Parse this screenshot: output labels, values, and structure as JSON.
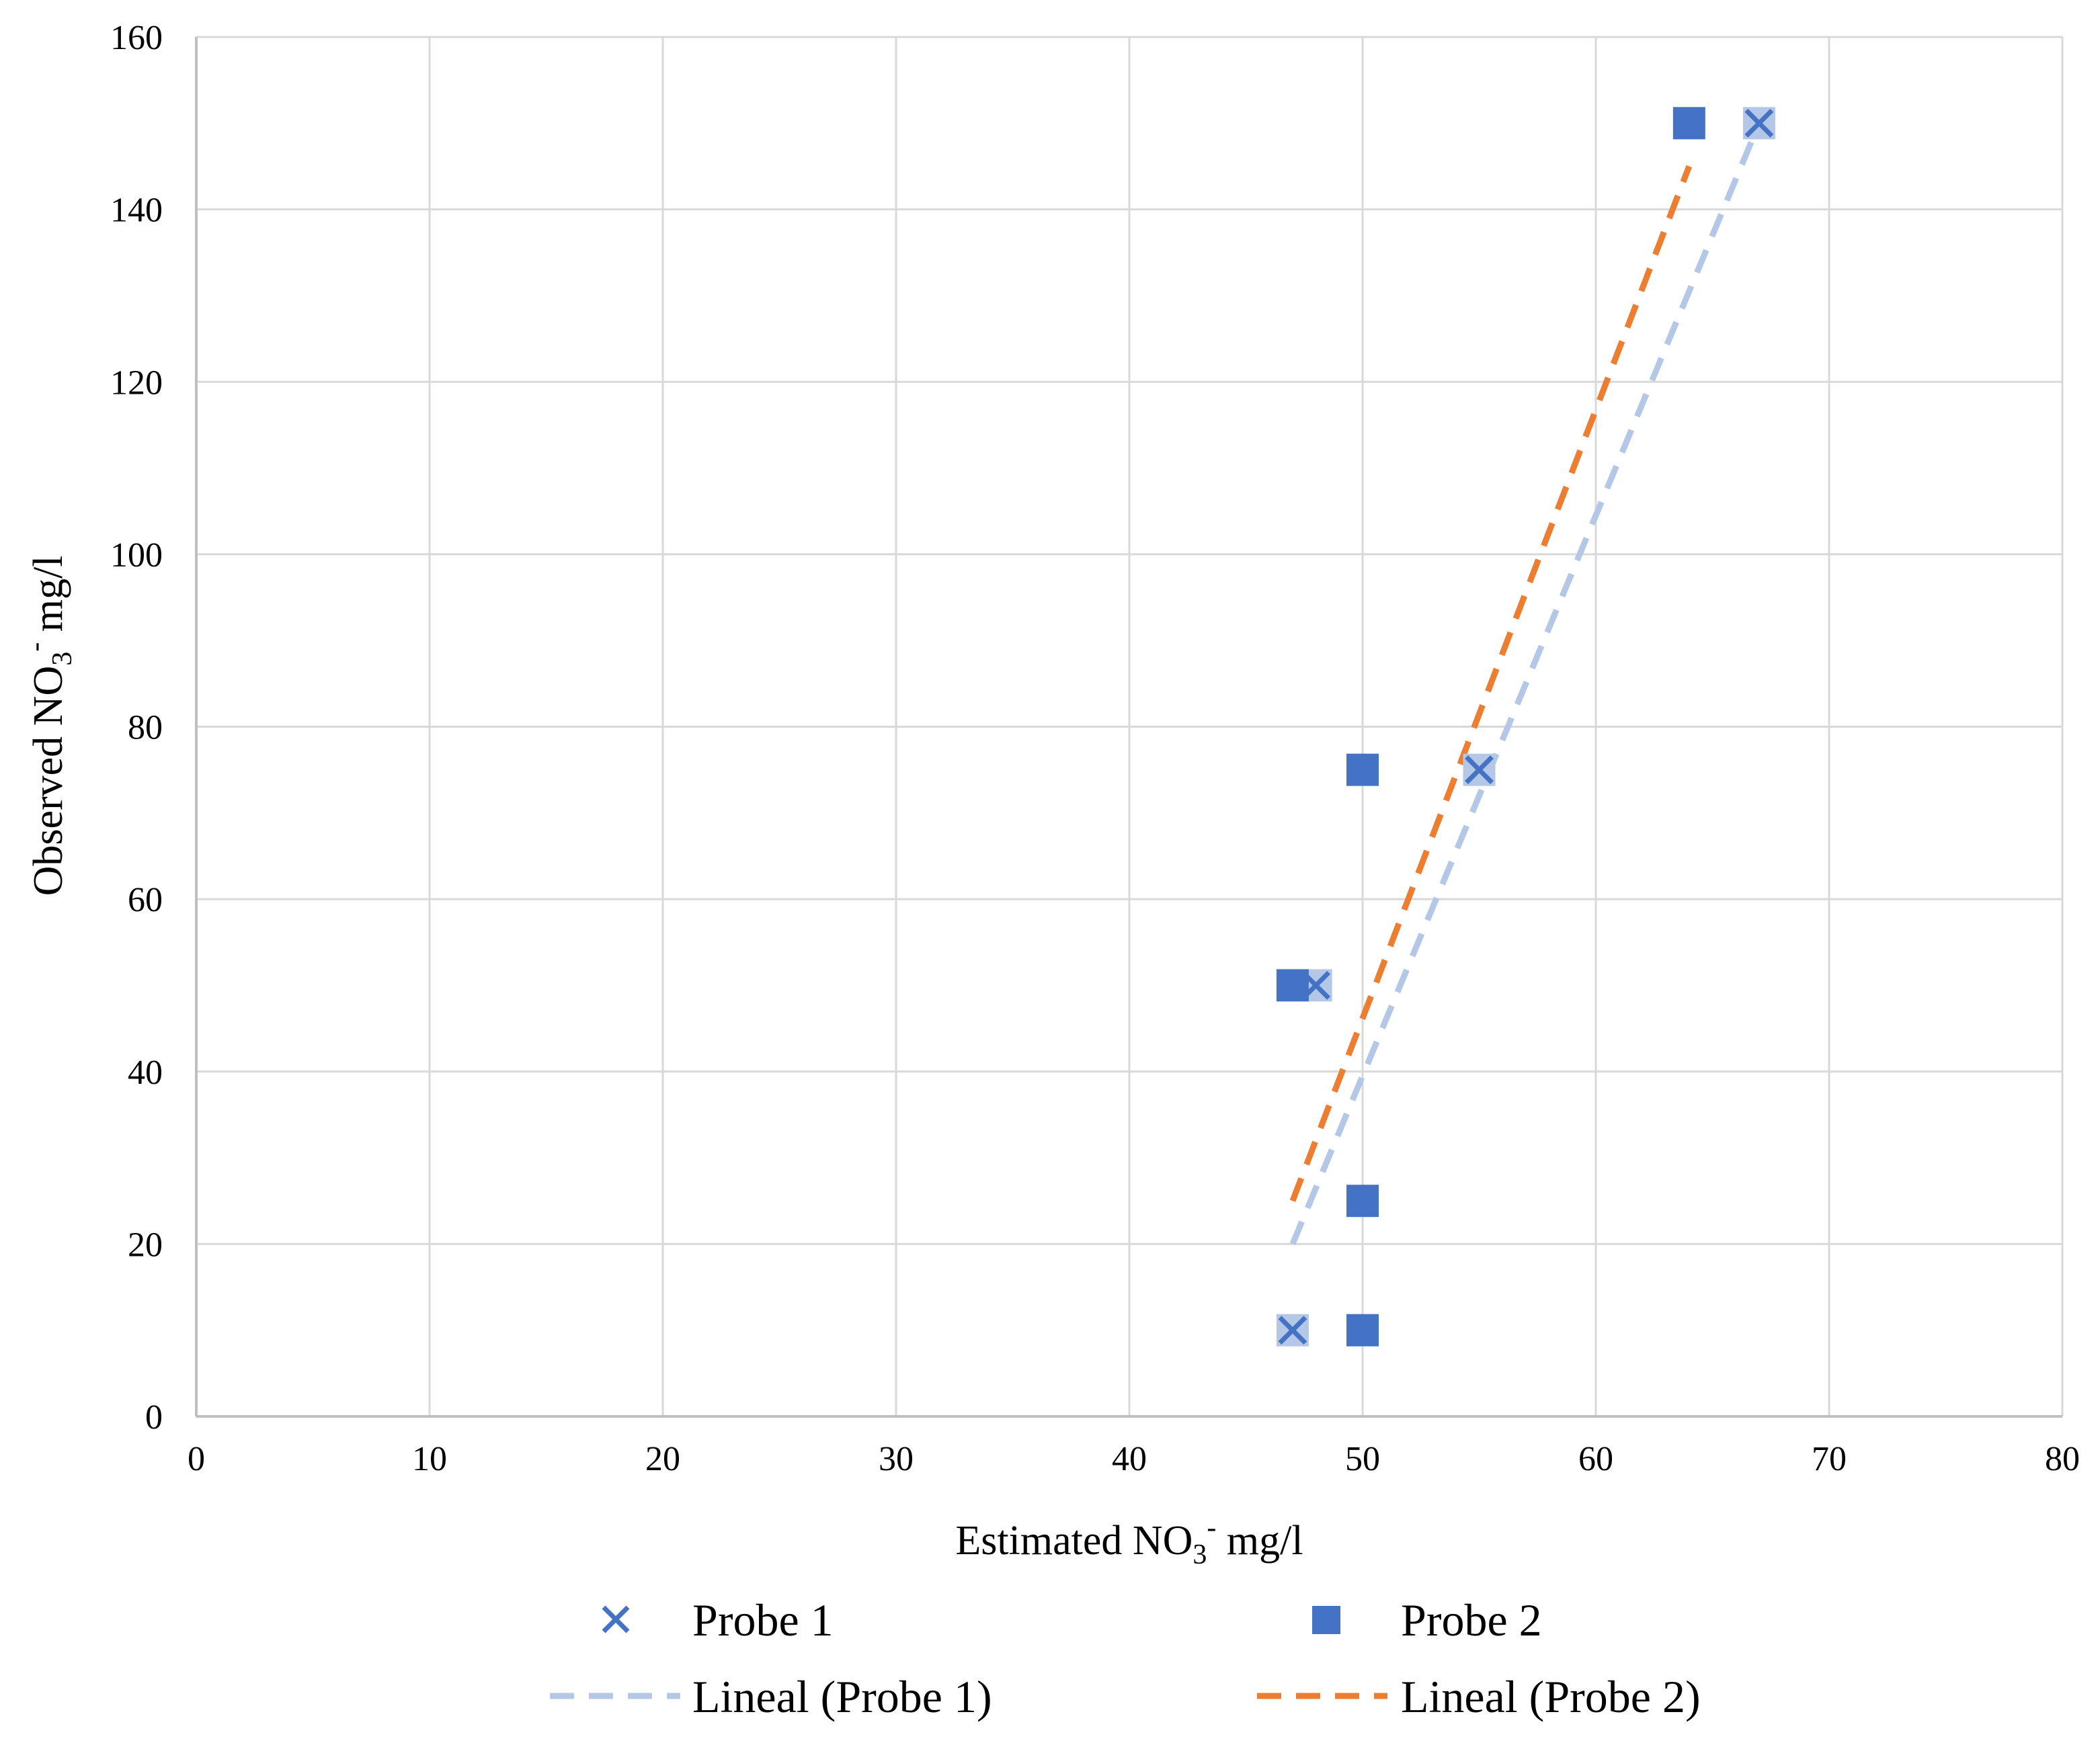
{
  "chart_data": {
    "type": "scatter",
    "xlabel": {
      "prefix": "Estimated NO",
      "sub": "3",
      "sup": "-",
      "suffix": " mg/l"
    },
    "ylabel": {
      "prefix": "Observed  NO",
      "sub": "3",
      "sup": "-",
      "suffix": "  mg/l"
    },
    "xlim": [
      0,
      80
    ],
    "ylim": [
      0,
      160
    ],
    "xticks": [
      0,
      10,
      20,
      30,
      40,
      50,
      60,
      70,
      80
    ],
    "yticks": [
      0,
      20,
      40,
      60,
      80,
      100,
      120,
      140,
      160
    ],
    "grid": true,
    "legend_position": "bottom",
    "series": [
      {
        "name": "Probe 1",
        "marker": "x",
        "color": "#4472c4",
        "points": [
          [
            47,
            10
          ],
          [
            48,
            50
          ],
          [
            55,
            75
          ],
          [
            67,
            150
          ]
        ]
      },
      {
        "name": "Probe 2",
        "marker": "square",
        "color": "#4472c4",
        "points": [
          [
            50,
            10
          ],
          [
            50,
            25
          ],
          [
            47,
            50
          ],
          [
            50,
            75
          ],
          [
            64,
            150
          ]
        ]
      }
    ],
    "trendlines": [
      {
        "name": "Lineal (Probe 1)",
        "style": "dashed",
        "color": "#b4c7e7",
        "from": [
          47,
          20
        ],
        "to": [
          67,
          150
        ]
      },
      {
        "name": "Lineal (Probe 2)",
        "style": "dashed",
        "color": "#ed7d31",
        "from": [
          47,
          25
        ],
        "to": [
          64,
          145
        ]
      }
    ]
  }
}
